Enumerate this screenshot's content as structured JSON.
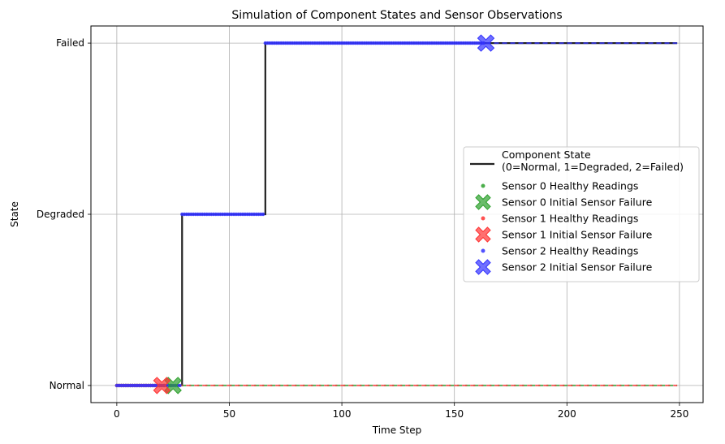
{
  "chart_data": {
    "type": "line",
    "title": "Simulation of Component States and Sensor Observations",
    "xlabel": "Time Step",
    "ylabel": "State",
    "xlim": [
      -11.5,
      260.5
    ],
    "ylim": [
      2.1,
      -0.1
    ],
    "x_ticks": [
      0,
      50,
      100,
      150,
      200,
      250
    ],
    "y_ticks": [
      {
        "value": 0,
        "label": "Normal"
      },
      {
        "value": 1,
        "label": "Degraded"
      },
      {
        "value": 2,
        "label": "Failed"
      }
    ],
    "grid": true,
    "legend_position": "center-right",
    "component_state": {
      "name": "Component State\n (0=Normal, 1=Degraded, 2=Failed)",
      "color": "#222222",
      "steps": [
        {
          "x_start": 0,
          "x_end": 29,
          "state": 0
        },
        {
          "x_start": 29,
          "x_end": 66,
          "state": 1
        },
        {
          "x_start": 66,
          "x_end": 249,
          "state": 2
        }
      ]
    },
    "sensors": [
      {
        "healthy_name": "Sensor 0 Healthy Readings",
        "failure_name": "Sensor 0 Initial Sensor Failure",
        "color": "#2ca02c",
        "healthy_ranges": [
          [
            0,
            24,
            0
          ]
        ],
        "stuck_value": 0,
        "failure": {
          "x": 25,
          "state": 0
        }
      },
      {
        "healthy_name": "Sensor 1 Healthy Readings",
        "failure_name": "Sensor 1 Initial Sensor Failure",
        "color": "#ff3333",
        "healthy_ranges": [
          [
            0,
            19,
            0
          ]
        ],
        "stuck_value": 0,
        "failure": {
          "x": 20,
          "state": 0
        }
      },
      {
        "healthy_name": "Sensor 2 Healthy Readings",
        "failure_name": "Sensor 2 Initial Sensor Failure",
        "color": "#3333ff",
        "healthy_ranges": [
          [
            0,
            28,
            0
          ],
          [
            29,
            65,
            1
          ],
          [
            66,
            163,
            2
          ]
        ],
        "stuck_value": 2,
        "failure": {
          "x": 164,
          "state": 2
        }
      }
    ],
    "stuck_readings_end": 249
  }
}
